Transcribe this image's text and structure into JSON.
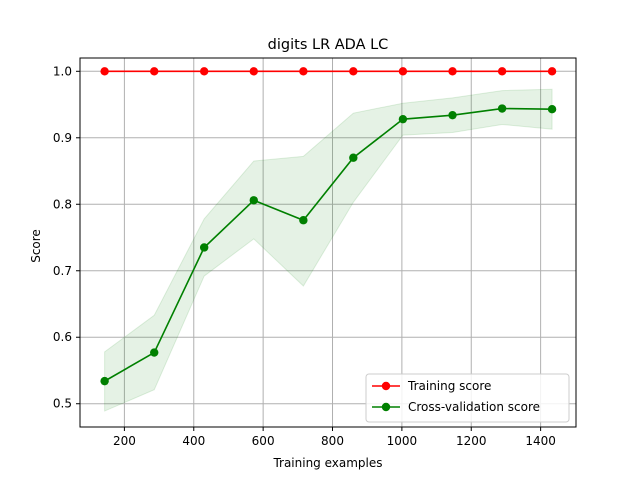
{
  "chart_data": {
    "type": "line",
    "title": "digits LR ADA LC",
    "xlabel": "Training examples",
    "ylabel": "Score",
    "xlim": [
      72,
      1502
    ],
    "ylim": [
      0.465,
      1.02
    ],
    "xticks": [
      200,
      400,
      600,
      800,
      1000,
      1200,
      1400
    ],
    "yticks": [
      0.5,
      0.6,
      0.7,
      0.8,
      0.9,
      1.0
    ],
    "xtick_labels": [
      "200",
      "400",
      "600",
      "800",
      "1000",
      "1200",
      "1400"
    ],
    "ytick_labels": [
      "0.5",
      "0.6",
      "0.7",
      "0.8",
      "0.9",
      "1.0"
    ],
    "grid": true,
    "legend_position": "lower-right",
    "x": [
      143,
      286,
      430,
      573,
      716,
      860,
      1003,
      1146,
      1289,
      1433
    ],
    "series": [
      {
        "name": "Training score",
        "color": "#ff0000",
        "values": [
          1.0,
          1.0,
          1.0,
          1.0,
          1.0,
          1.0,
          1.0,
          1.0,
          1.0,
          1.0
        ],
        "band_upper": [
          1.0,
          1.0,
          1.0,
          1.0,
          1.0,
          1.0,
          1.0,
          1.0,
          1.0,
          1.0
        ],
        "band_lower": [
          1.0,
          1.0,
          1.0,
          1.0,
          1.0,
          1.0,
          1.0,
          1.0,
          1.0,
          1.0
        ]
      },
      {
        "name": "Cross-validation score",
        "color": "#008000",
        "values": [
          0.534,
          0.577,
          0.735,
          0.806,
          0.776,
          0.87,
          0.928,
          0.934,
          0.944,
          0.943
        ],
        "band_upper": [
          0.578,
          0.633,
          0.778,
          0.865,
          0.872,
          0.937,
          0.952,
          0.96,
          0.971,
          0.973
        ],
        "band_lower": [
          0.489,
          0.521,
          0.692,
          0.748,
          0.677,
          0.803,
          0.904,
          0.908,
          0.92,
          0.913
        ]
      }
    ]
  }
}
